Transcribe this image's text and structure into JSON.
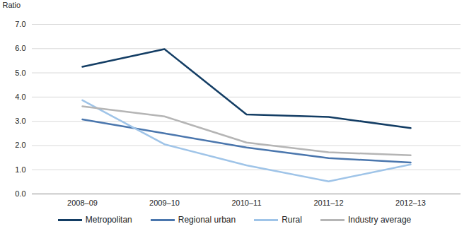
{
  "chart_data": {
    "type": "line",
    "y_label": "Ratio",
    "categories": [
      "2008–09",
      "2009–10",
      "2010–11",
      "2011–12",
      "2012–13"
    ],
    "series": [
      {
        "name": "Metropolitan",
        "color": "#133d64",
        "values": [
          5.25,
          5.98,
          3.28,
          3.18,
          2.72
        ]
      },
      {
        "name": "Regional urban",
        "color": "#4a76ad",
        "values": [
          3.08,
          2.5,
          1.92,
          1.48,
          1.3
        ]
      },
      {
        "name": "Rural",
        "color": "#9fc4e8",
        "values": [
          3.87,
          2.05,
          1.18,
          0.52,
          1.22
        ]
      },
      {
        "name": "Industry average",
        "color": "#b5b5b5",
        "values": [
          3.62,
          3.2,
          2.12,
          1.72,
          1.6
        ]
      }
    ],
    "ylim": [
      0,
      7
    ],
    "yticks": [
      {
        "value": 0,
        "label": "0.0"
      },
      {
        "value": 1,
        "label": "1.0"
      },
      {
        "value": 2,
        "label": "2.0"
      },
      {
        "value": 3,
        "label": "3.0"
      },
      {
        "value": 4,
        "label": "4.0"
      },
      {
        "value": 5,
        "label": "5.0"
      },
      {
        "value": 6,
        "label": "6.0"
      },
      {
        "value": 7,
        "label": "7.0"
      }
    ],
    "grid": true,
    "legend": "bottom"
  }
}
